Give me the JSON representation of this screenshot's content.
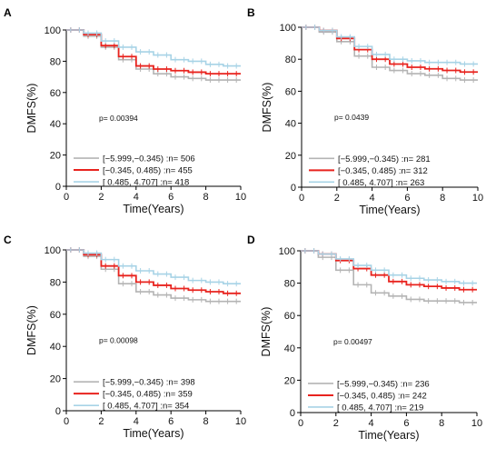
{
  "chart_data": [
    {
      "panel": "A",
      "type": "line",
      "ylabel": "DMFS(%)",
      "xlabel": "Time(Years)",
      "xlim": [
        0,
        10
      ],
      "ylim": [
        0,
        100
      ],
      "xticks": [
        "0",
        "2",
        "4",
        "6",
        "8",
        "10"
      ],
      "yticks": [
        "0",
        "20",
        "40",
        "60",
        "80",
        "100"
      ],
      "p_value": "p= 0.00394",
      "series": [
        {
          "name": "[−5.999,−0.345) :n= 506",
          "color": "#b4b4b4",
          "x": [
            0,
            1,
            2,
            3,
            4,
            5,
            6,
            7,
            8,
            9,
            10
          ],
          "y": [
            100,
            96,
            89,
            81,
            75,
            72,
            70,
            69,
            68,
            68,
            68
          ]
        },
        {
          "name": "[−0.345, 0.485) :n= 455",
          "color": "#e8231e",
          "x": [
            0,
            1,
            2,
            3,
            4,
            5,
            6,
            7,
            8,
            9,
            10
          ],
          "y": [
            100,
            97,
            90,
            83,
            77,
            75,
            74,
            73,
            72,
            72,
            72
          ]
        },
        {
          "name": "[ 0.485, 4.707] :n= 418",
          "color": "#a7d3e6",
          "x": [
            0,
            1,
            2,
            3,
            4,
            5,
            6,
            7,
            8,
            9,
            10
          ],
          "y": [
            100,
            98,
            93,
            89,
            86,
            84,
            81,
            80,
            78,
            77,
            77
          ]
        }
      ]
    },
    {
      "panel": "B",
      "type": "line",
      "ylabel": "DMFS(%)",
      "xlabel": "Time(Years)",
      "xlim": [
        0,
        10
      ],
      "ylim": [
        0,
        100
      ],
      "xticks": [
        "0",
        "2",
        "4",
        "6",
        "8",
        "10"
      ],
      "yticks": [
        "0",
        "20",
        "40",
        "60",
        "80",
        "100"
      ],
      "p_value": "p= 0.0439",
      "series": [
        {
          "name": "[−5.999,−0.345) :n= 281",
          "color": "#b4b4b4",
          "x": [
            0,
            1,
            2,
            3,
            4,
            5,
            6,
            7,
            8,
            9,
            10
          ],
          "y": [
            100,
            97,
            91,
            82,
            75,
            73,
            71,
            70,
            68,
            67,
            67
          ]
        },
        {
          "name": "[−0.345, 0.485) :n= 312",
          "color": "#e8231e",
          "x": [
            0,
            1,
            2,
            3,
            4,
            5,
            6,
            7,
            8,
            9,
            10
          ],
          "y": [
            100,
            98,
            93,
            86,
            80,
            77,
            75,
            74,
            73,
            72,
            72
          ]
        },
        {
          "name": "[ 0.485, 4.707] :n= 263",
          "color": "#a7d3e6",
          "x": [
            0,
            1,
            2,
            3,
            4,
            5,
            6,
            7,
            8,
            9,
            10
          ],
          "y": [
            100,
            98,
            94,
            88,
            83,
            80,
            79,
            78,
            78,
            77,
            77
          ]
        }
      ]
    },
    {
      "panel": "C",
      "type": "line",
      "ylabel": "DMFS(%)",
      "xlabel": "Time(Years)",
      "xlim": [
        0,
        10
      ],
      "ylim": [
        0,
        100
      ],
      "xticks": [
        "0",
        "2",
        "4",
        "6",
        "8",
        "10"
      ],
      "yticks": [
        "0",
        "20",
        "40",
        "60",
        "80",
        "100"
      ],
      "p_value": "p= 0.00098",
      "series": [
        {
          "name": "[−5.999,−0.345) :n= 398",
          "color": "#b4b4b4",
          "x": [
            0,
            1,
            2,
            3,
            4,
            5,
            6,
            7,
            8,
            9,
            10
          ],
          "y": [
            100,
            96,
            88,
            79,
            74,
            72,
            70,
            69,
            68,
            68,
            68
          ]
        },
        {
          "name": "[−0.345, 0.485) :n= 359",
          "color": "#e8231e",
          "x": [
            0,
            1,
            2,
            3,
            4,
            5,
            6,
            7,
            8,
            9,
            10
          ],
          "y": [
            100,
            97,
            90,
            84,
            80,
            78,
            76,
            75,
            74,
            73,
            73
          ]
        },
        {
          "name": "[ 0.485, 4.707] :n= 354",
          "color": "#a7d3e6",
          "x": [
            0,
            1,
            2,
            3,
            4,
            5,
            6,
            7,
            8,
            9,
            10
          ],
          "y": [
            100,
            98,
            94,
            90,
            87,
            85,
            83,
            81,
            80,
            79,
            79
          ]
        }
      ]
    },
    {
      "panel": "D",
      "type": "line",
      "ylabel": "DMFS(%)",
      "xlabel": "Time(Years)",
      "xlim": [
        0,
        10
      ],
      "ylim": [
        0,
        100
      ],
      "xticks": [
        "0",
        "2",
        "4",
        "6",
        "8",
        "10"
      ],
      "yticks": [
        "0",
        "20",
        "40",
        "60",
        "80",
        "100"
      ],
      "p_value": "p= 0.00497",
      "series": [
        {
          "name": "[−5.999,−0.345) :n= 236",
          "color": "#b4b4b4",
          "x": [
            0,
            1,
            2,
            3,
            4,
            5,
            6,
            7,
            8,
            9,
            10
          ],
          "y": [
            100,
            96,
            88,
            79,
            74,
            72,
            70,
            69,
            69,
            68,
            68
          ]
        },
        {
          "name": "[−0.345, 0.485) :n= 242",
          "color": "#e8231e",
          "x": [
            0,
            1,
            2,
            3,
            4,
            5,
            6,
            7,
            8,
            9,
            10
          ],
          "y": [
            100,
            98,
            94,
            89,
            85,
            81,
            79,
            78,
            77,
            76,
            76
          ]
        },
        {
          "name": "[ 0.485, 4.707] :n= 219",
          "color": "#a7d3e6",
          "x": [
            0,
            1,
            2,
            3,
            4,
            5,
            6,
            7,
            8,
            9,
            10
          ],
          "y": [
            100,
            98,
            95,
            91,
            88,
            85,
            83,
            82,
            81,
            80,
            80
          ]
        }
      ]
    }
  ]
}
